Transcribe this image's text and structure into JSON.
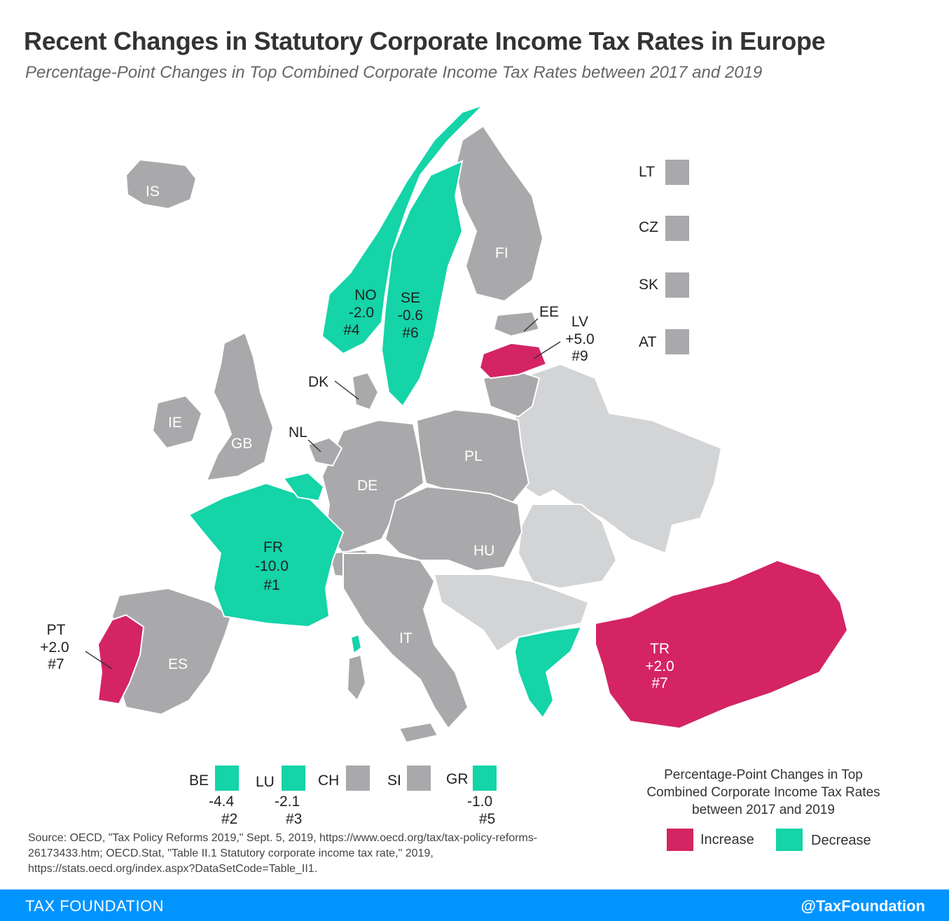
{
  "title": "Recent Changes in Statutory Corporate Income Tax Rates in Europe",
  "subtitle": "Percentage-Point Changes in Top Combined Corporate Income Tax Rates between 2017 and 2019",
  "colors": {
    "increase": "#d42463",
    "decrease": "#14d4a8",
    "no_change": "#a9a9ab",
    "not_covered": "#d3d4d6"
  },
  "map_labels": {
    "IS": "IS",
    "IE": "IE",
    "GB": "GB",
    "FI": "FI",
    "PL": "PL",
    "DE": "DE",
    "HU": "HU",
    "IT": "IT",
    "ES": "ES",
    "DK": "DK",
    "NL": "NL",
    "EE": "EE",
    "NO": {
      "code": "NO",
      "change": "-2.0",
      "rank": "#4"
    },
    "SE": {
      "code": "SE",
      "change": "-0.6",
      "rank": "#6"
    },
    "LV": {
      "code": "LV",
      "change": "+5.0",
      "rank": "#9"
    },
    "FR": {
      "code": "FR",
      "change": "-10.0",
      "rank": "#1"
    },
    "PT": {
      "code": "PT",
      "change": "+2.0",
      "rank": "#7"
    },
    "TR": {
      "code": "TR",
      "change": "+2.0",
      "rank": "#7"
    }
  },
  "side_boxes": [
    "LT",
    "CZ",
    "SK",
    "AT"
  ],
  "bottom_boxes": [
    {
      "code": "BE",
      "change": "-4.4",
      "rank": "#2"
    },
    {
      "code": "LU",
      "change": "-2.1",
      "rank": "#3"
    },
    {
      "code": "CH"
    },
    {
      "code": "SI"
    },
    {
      "code": "GR",
      "change": "-1.0",
      "rank": "#5"
    }
  ],
  "legend": {
    "title": "Percentage-Point Changes in Top Combined Corporate Income Tax Rates between 2017 and 2019",
    "increase_label": "Increase",
    "decrease_label": "Decrease"
  },
  "source": "Source: OECD, \"Tax Policy Reforms 2019,\" Sept. 5, 2019, https://www.oecd.org/tax/tax-policy-reforms-26173433.htm; OECD.Stat, \"Table II.1 Statutory corporate income tax rate,\" 2019, https://stats.oecd.org/index.aspx?DataSetCode=Table_II1.",
  "footer": {
    "left": "TAX FOUNDATION",
    "right": "@TaxFoundation"
  }
}
